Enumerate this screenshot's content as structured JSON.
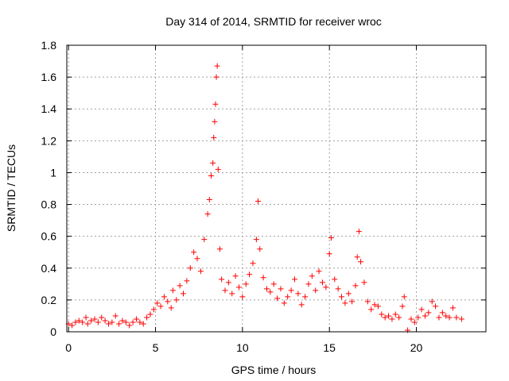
{
  "chart_data": {
    "type": "scatter",
    "title": "Day 314 of 2014, SRMTID for receiver wroc",
    "xlabel": "GPS time / hours",
    "ylabel": "SRMTID / TECUs",
    "xlim": [
      -0.1,
      24.0
    ],
    "ylim": [
      0,
      1.8
    ],
    "xticks": [
      0,
      5,
      10,
      15,
      20
    ],
    "xtick_labels": [
      "0",
      "5",
      "10",
      "15",
      "20"
    ],
    "yticks": [
      0,
      0.2,
      0.4,
      0.6,
      0.8,
      1.0,
      1.2,
      1.4,
      1.6,
      1.8
    ],
    "ytick_labels": [
      "0",
      "0.2",
      "0.4",
      "0.6",
      "0.8",
      "1",
      "1.2",
      "1.4",
      "1.6",
      "1.8"
    ],
    "grid": true,
    "marker": "+",
    "color": "#ff0000",
    "series": [
      {
        "name": "SRMTID",
        "x": [
          0.0,
          0.2,
          0.4,
          0.6,
          0.8,
          1.0,
          1.1,
          1.3,
          1.5,
          1.7,
          1.9,
          2.1,
          2.3,
          2.5,
          2.7,
          2.9,
          3.1,
          3.3,
          3.5,
          3.7,
          3.9,
          4.1,
          4.3,
          4.5,
          4.7,
          4.9,
          5.1,
          5.3,
          5.5,
          5.7,
          5.9,
          6.0,
          6.2,
          6.4,
          6.6,
          6.8,
          7.0,
          7.2,
          7.4,
          7.6,
          7.8,
          8.0,
          8.1,
          8.2,
          8.3,
          8.35,
          8.4,
          8.45,
          8.5,
          8.55,
          8.6,
          8.7,
          8.8,
          9.0,
          9.2,
          9.4,
          9.6,
          9.8,
          10.0,
          10.2,
          10.4,
          10.6,
          10.8,
          10.9,
          11.0,
          11.2,
          11.4,
          11.6,
          11.8,
          12.0,
          12.2,
          12.4,
          12.6,
          12.8,
          13.0,
          13.2,
          13.4,
          13.6,
          13.8,
          14.0,
          14.2,
          14.4,
          14.6,
          14.8,
          15.0,
          15.1,
          15.3,
          15.5,
          15.7,
          15.9,
          16.1,
          16.3,
          16.5,
          16.6,
          16.7,
          16.8,
          17.0,
          17.2,
          17.4,
          17.6,
          17.8,
          18.0,
          18.2,
          18.4,
          18.6,
          18.8,
          19.0,
          19.2,
          19.3,
          19.5,
          19.7,
          19.9,
          20.1,
          20.3,
          20.5,
          20.7,
          20.9,
          21.1,
          21.3,
          21.5,
          21.7,
          21.9,
          22.1,
          22.3,
          22.6
        ],
        "y": [
          0.05,
          0.04,
          0.06,
          0.07,
          0.06,
          0.09,
          0.05,
          0.07,
          0.08,
          0.06,
          0.09,
          0.07,
          0.05,
          0.06,
          0.1,
          0.05,
          0.07,
          0.06,
          0.04,
          0.06,
          0.08,
          0.06,
          0.05,
          0.09,
          0.11,
          0.14,
          0.18,
          0.16,
          0.22,
          0.19,
          0.15,
          0.26,
          0.2,
          0.29,
          0.24,
          0.32,
          0.4,
          0.5,
          0.46,
          0.38,
          0.58,
          0.74,
          0.83,
          0.98,
          1.06,
          1.22,
          1.32,
          1.43,
          1.6,
          1.67,
          1.02,
          0.52,
          0.33,
          0.26,
          0.31,
          0.24,
          0.35,
          0.28,
          0.22,
          0.3,
          0.36,
          0.43,
          0.58,
          0.82,
          0.52,
          0.34,
          0.27,
          0.25,
          0.3,
          0.21,
          0.27,
          0.18,
          0.22,
          0.26,
          0.33,
          0.24,
          0.17,
          0.22,
          0.3,
          0.35,
          0.26,
          0.38,
          0.31,
          0.28,
          0.49,
          0.59,
          0.33,
          0.27,
          0.22,
          0.18,
          0.24,
          0.19,
          0.29,
          0.47,
          0.63,
          0.44,
          0.31,
          0.19,
          0.14,
          0.17,
          0.16,
          0.11,
          0.09,
          0.1,
          0.08,
          0.11,
          0.09,
          0.16,
          0.22,
          0.01,
          0.08,
          0.06,
          0.09,
          0.14,
          0.1,
          0.12,
          0.19,
          0.16,
          0.09,
          0.12,
          0.1,
          0.09,
          0.15,
          0.09,
          0.08
        ]
      }
    ]
  }
}
